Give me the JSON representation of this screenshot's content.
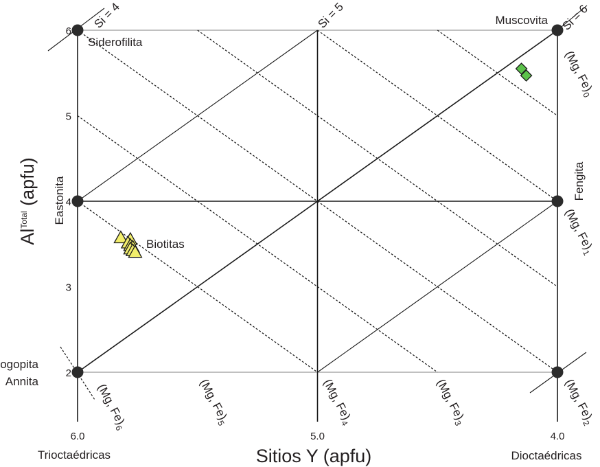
{
  "chart_data": {
    "type": "scatter",
    "xlabel": "Sitios Y (apfu)",
    "ylabel": "Al",
    "ylabel_sup": "Total",
    "ylabel_tail": " (apfu)",
    "xlim": [
      6.0,
      4.0
    ],
    "ylim": [
      2,
      6
    ],
    "x_ticks": [
      {
        "value": 6.0,
        "label": "6.0"
      },
      {
        "value": 5.0,
        "label": "5.0"
      },
      {
        "value": 4.0,
        "label": "4.0"
      }
    ],
    "y_ticks": [
      {
        "value": 2,
        "label": "2"
      },
      {
        "value": 3,
        "label": "3"
      },
      {
        "value": 4,
        "label": "4"
      },
      {
        "value": 5,
        "label": "5"
      },
      {
        "value": 6,
        "label": "6"
      }
    ],
    "x_end_labels": {
      "left": "Trioctaédricas",
      "right": "Dioctaédricas"
    },
    "end_members": [
      {
        "name": "Siderofilita",
        "x": 6.0,
        "y": 6
      },
      {
        "name": "Eastonita",
        "x": 6.0,
        "y": 4
      },
      {
        "name": "Flogopita",
        "name2": "Annita",
        "x": 6.0,
        "y": 2
      },
      {
        "name": "Muscovita",
        "x": 4.0,
        "y": 6
      },
      {
        "name": "Fengita",
        "x": 4.0,
        "y": 4
      },
      {
        "name": "",
        "x": 4.0,
        "y": 2
      }
    ],
    "si_lines": [
      {
        "label": "Si = 4",
        "x": 6.0,
        "y": 6
      },
      {
        "label": "Si = 5",
        "x": 5.0,
        "y": 6
      },
      {
        "label": "Si = 6",
        "x": 4.0,
        "y": 6
      }
    ],
    "mgfe_lines": [
      {
        "base": "(Mg, Fe)",
        "sub": "0"
      },
      {
        "base": "(Mg, Fe)",
        "sub": "1"
      },
      {
        "base": "(Mg, Fe)",
        "sub": "2"
      },
      {
        "base": "(Mg, Fe)",
        "sub": "3"
      },
      {
        "base": "(Mg, Fe)",
        "sub": "4"
      },
      {
        "base": "(Mg, Fe)",
        "sub": "5"
      },
      {
        "base": "(Mg, Fe)",
        "sub": "6"
      }
    ],
    "series": [
      {
        "name": "Biotitas",
        "marker": "triangle",
        "color": "#f2ee6c",
        "points": [
          [
            5.82,
            3.57
          ],
          [
            5.78,
            3.55
          ],
          [
            5.79,
            3.51
          ],
          [
            5.78,
            3.48
          ],
          [
            5.77,
            3.46
          ],
          [
            5.78,
            3.44
          ],
          [
            5.77,
            3.42
          ],
          [
            5.76,
            3.4
          ]
        ]
      },
      {
        "name": "",
        "marker": "diamond",
        "color": "#5cc24a",
        "points": [
          [
            4.15,
            5.55
          ],
          [
            4.13,
            5.47
          ]
        ]
      }
    ]
  }
}
